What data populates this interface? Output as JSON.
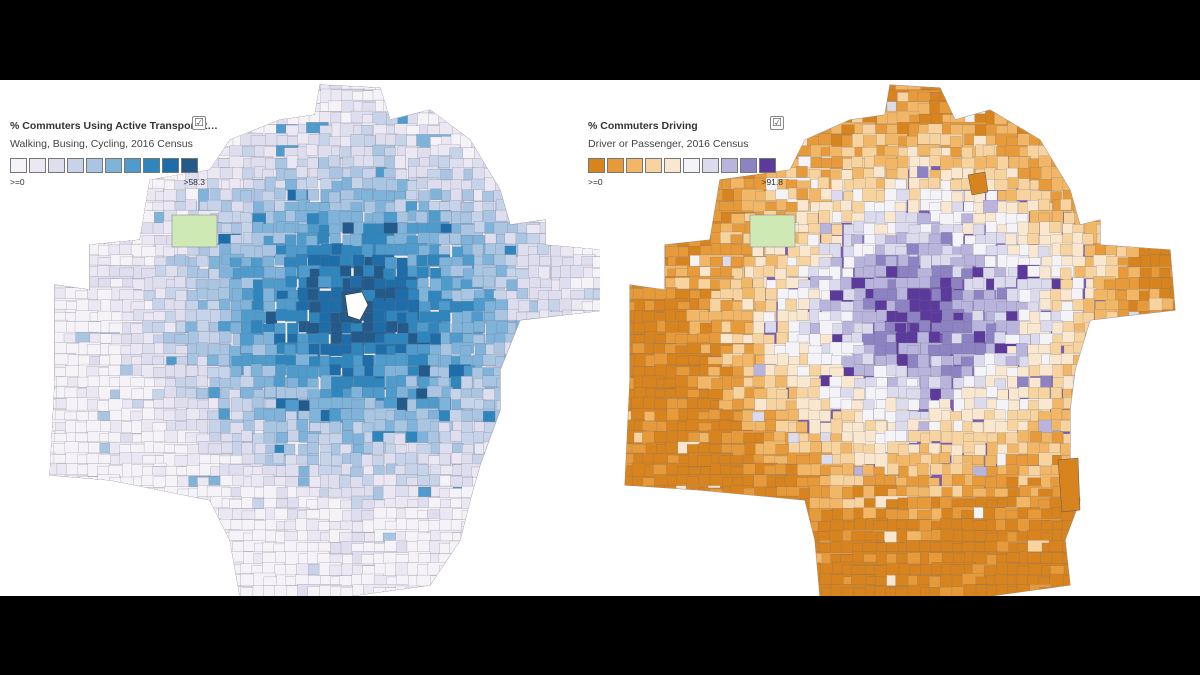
{
  "maps": [
    {
      "legend": {
        "title": "% Commuters Using Active Transportat…",
        "subtitle": "Walking, Busing, Cycling, 2016 Census",
        "min_label": ">=0",
        "max_label": ">58.3",
        "checkbox": "☑",
        "swatch_colors": [
          "#f6f3f8",
          "#ece8f3",
          "#dfdeee",
          "#c7d3e8",
          "#a9c5e2",
          "#7fb3da",
          "#4f9ccc",
          "#2f86bd",
          "#1f6da8",
          "#235a8a"
        ]
      },
      "center_color": "#1f4e7a",
      "mid_color": "#4d9ecf",
      "outer_color": "#d9def0",
      "fringe_color": "#efedf5"
    },
    {
      "legend": {
        "title": "% Commuters Driving",
        "subtitle": "Driver or Passenger, 2016 Census",
        "min_label": ">=0",
        "max_label": ">91.8",
        "checkbox": "☑",
        "swatch_colors": [
          "#d7831e",
          "#e69a3a",
          "#f2b766",
          "#f7d39f",
          "#f9e8cf",
          "#f4f3f7",
          "#dcdbee",
          "#b9b4db",
          "#8e83c2",
          "#5b3a9c"
        ]
      },
      "center_color": "#e0952c",
      "mid_color": "#f6d09a",
      "outer_color": "#b9b2da",
      "fringe_color": "#6b45a8"
    }
  ]
}
